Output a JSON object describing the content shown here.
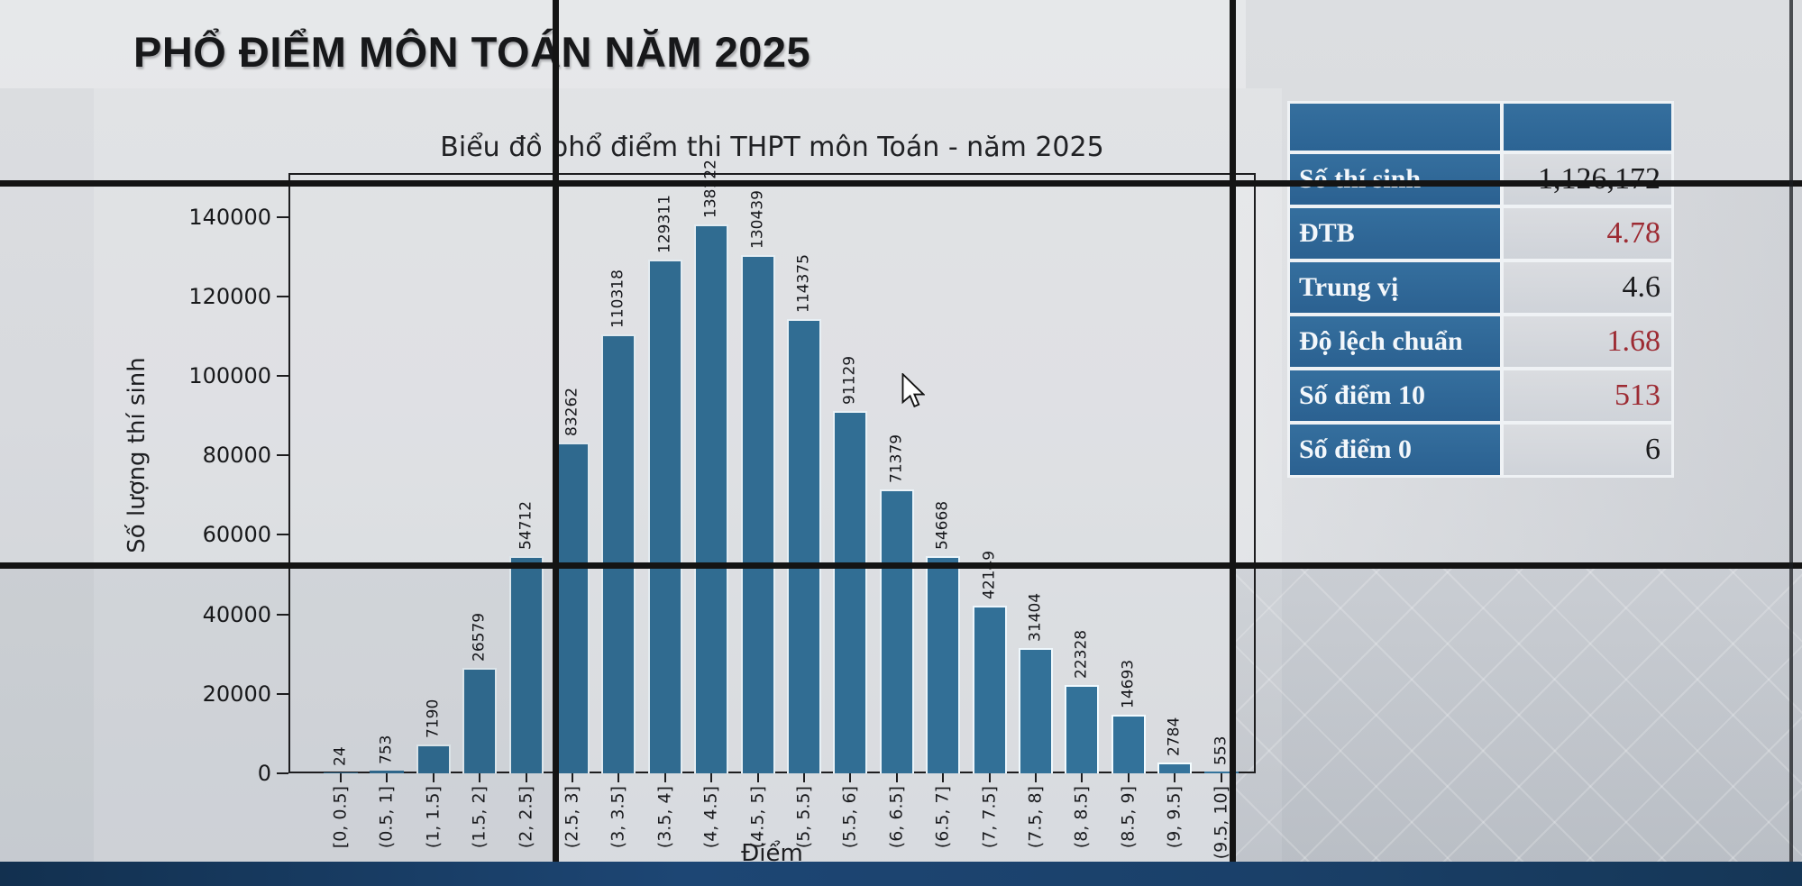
{
  "page_title": "PHỔ ĐIỂM MÔN TOÁN NĂM 2025",
  "chart_data": {
    "type": "bar",
    "title": "Biểu đồ phổ điểm thi THPT môn Toán - năm 2025",
    "xlabel": "Điểm",
    "ylabel": "Số lượng thí sinh",
    "categories": [
      "[0, 0.5]",
      "(0.5, 1]",
      "(1, 1.5]",
      "(1.5, 2]",
      "(2, 2.5]",
      "(2.5, 3]",
      "(3, 3.5]",
      "(3.5, 4]",
      "(4, 4.5]",
      "(4.5, 5]",
      "(5, 5.5]",
      "(5.5, 6]",
      "(6, 6.5]",
      "(6.5, 7]",
      "(7, 7.5]",
      "(7.5, 8]",
      "(8, 8.5]",
      "(8.5, 9]",
      "(9, 9.5]",
      "(9.5, 10]"
    ],
    "values": [
      24,
      753,
      7190,
      26579,
      54712,
      83262,
      110318,
      129311,
      138122,
      130439,
      114375,
      91129,
      71379,
      54668,
      42149,
      31404,
      22328,
      14693,
      2784,
      553
    ],
    "yticks": [
      0,
      20000,
      40000,
      60000,
      80000,
      100000,
      120000,
      140000
    ],
    "ylim": [
      0,
      151000
    ],
    "grid": false,
    "legend": null,
    "bar_color": "#306b90"
  },
  "stats_table": {
    "rows": [
      {
        "label": "Số thí sinh",
        "value": "1,126,172",
        "value_color": "black"
      },
      {
        "label": "ĐTB",
        "value": "4.78",
        "value_color": "red"
      },
      {
        "label": "Trung vị",
        "value": "4.6",
        "value_color": "black"
      },
      {
        "label": "Độ lệch chuẩn",
        "value": "1.68",
        "value_color": "red"
      },
      {
        "label": "Số điểm 10",
        "value": "513",
        "value_color": "red"
      },
      {
        "label": "Số điểm 0",
        "value": "6",
        "value_color": "black"
      }
    ],
    "colors": {
      "header_blue": "#2f6b9e",
      "red_value": "#9d2b33",
      "black_value": "#1a1a1c"
    }
  },
  "video_wall": {
    "bezel_color": "#141414",
    "bottom_strip_color": "#1d4674"
  }
}
